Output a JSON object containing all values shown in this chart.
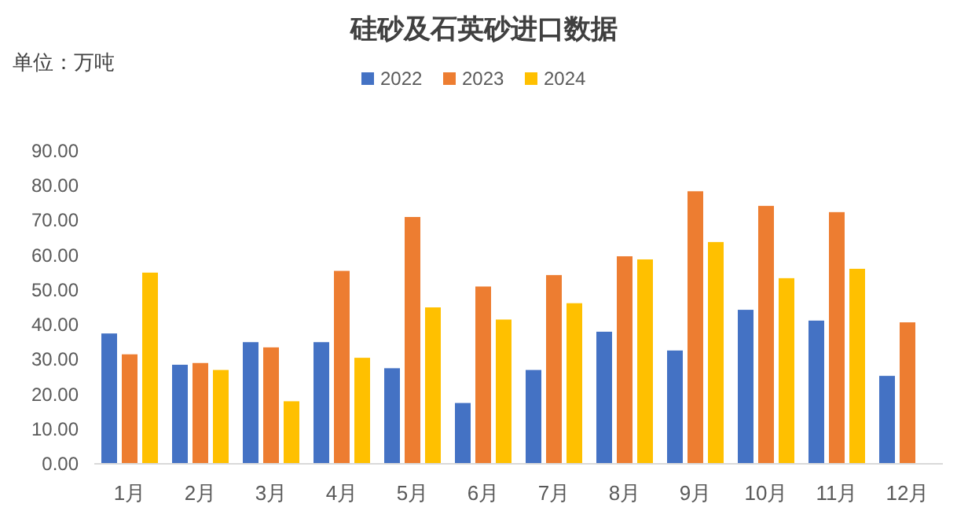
{
  "chart_data": {
    "type": "bar",
    "title": "硅砂及石英砂进口数据",
    "annotations": [
      "单位：万吨"
    ],
    "categories": [
      "1月",
      "2月",
      "3月",
      "4月",
      "5月",
      "6月",
      "7月",
      "8月",
      "9月",
      "10月",
      "11月",
      "12月"
    ],
    "series": [
      {
        "name": "2022",
        "color": "#4472c4",
        "values": [
          37.5,
          28.5,
          35,
          35,
          27.5,
          17.5,
          27,
          38,
          32.6,
          44.3,
          41.2,
          25.3
        ]
      },
      {
        "name": "2023",
        "color": "#ed7d31",
        "values": [
          31.5,
          29,
          33.5,
          55.5,
          71,
          51,
          54.3,
          59.7,
          78.4,
          74.2,
          72.4,
          40.7
        ]
      },
      {
        "name": "2024",
        "color": "#ffc000",
        "values": [
          55,
          27,
          18,
          30.5,
          45,
          41.5,
          46.2,
          58.8,
          63.8,
          53.4,
          56.1,
          null
        ]
      }
    ],
    "ylim": [
      0,
      90
    ],
    "yticks": [
      {
        "value": 0,
        "label": "0.00"
      },
      {
        "value": 10,
        "label": "10.00"
      },
      {
        "value": 20,
        "label": "20.00"
      },
      {
        "value": 30,
        "label": "30.00"
      },
      {
        "value": 40,
        "label": "40.00"
      },
      {
        "value": 50,
        "label": "50.00"
      },
      {
        "value": 60,
        "label": "60.00"
      },
      {
        "value": 70,
        "label": "70.00"
      },
      {
        "value": 80,
        "label": "80.00"
      },
      {
        "value": 90,
        "label": "90.00"
      }
    ],
    "grid": false,
    "legend": "top"
  }
}
